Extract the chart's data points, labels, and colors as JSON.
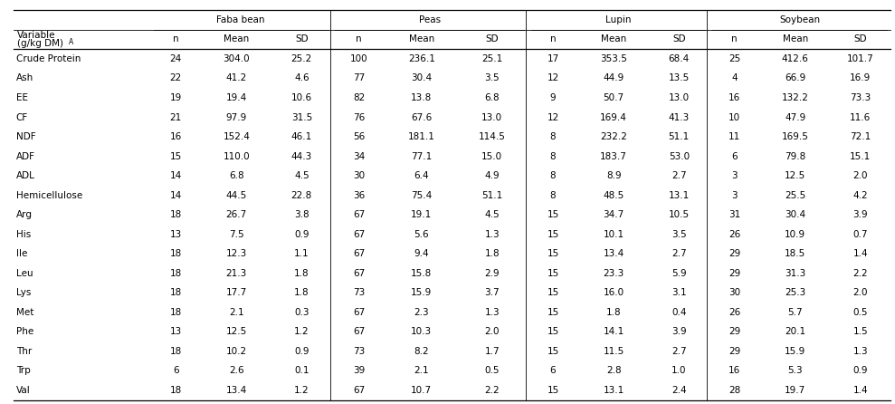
{
  "rows": [
    [
      "Crude Protein",
      "24",
      "304.0",
      "25.2",
      "100",
      "236.1",
      "25.1",
      "17",
      "353.5",
      "68.4",
      "25",
      "412.6",
      "101.7"
    ],
    [
      "Ash",
      "22",
      "41.2",
      "4.6",
      "77",
      "30.4",
      "3.5",
      "12",
      "44.9",
      "13.5",
      "4",
      "66.9",
      "16.9"
    ],
    [
      "EE",
      "19",
      "19.4",
      "10.6",
      "82",
      "13.8",
      "6.8",
      "9",
      "50.7",
      "13.0",
      "16",
      "132.2",
      "73.3"
    ],
    [
      "CF",
      "21",
      "97.9",
      "31.5",
      "76",
      "67.6",
      "13.0",
      "12",
      "169.4",
      "41.3",
      "10",
      "47.9",
      "11.6"
    ],
    [
      "NDF",
      "16",
      "152.4",
      "46.1",
      "56",
      "181.1",
      "114.5",
      "8",
      "232.2",
      "51.1",
      "11",
      "169.5",
      "72.1"
    ],
    [
      "ADF",
      "15",
      "110.0",
      "44.3",
      "34",
      "77.1",
      "15.0",
      "8",
      "183.7",
      "53.0",
      "6",
      "79.8",
      "15.1"
    ],
    [
      "ADL",
      "14",
      "6.8",
      "4.5",
      "30",
      "6.4",
      "4.9",
      "8",
      "8.9",
      "2.7",
      "3",
      "12.5",
      "2.0"
    ],
    [
      "Hemicellulose",
      "14",
      "44.5",
      "22.8",
      "36",
      "75.4",
      "51.1",
      "8",
      "48.5",
      "13.1",
      "3",
      "25.5",
      "4.2"
    ],
    [
      "Arg",
      "18",
      "26.7",
      "3.8",
      "67",
      "19.1",
      "4.5",
      "15",
      "34.7",
      "10.5",
      "31",
      "30.4",
      "3.9"
    ],
    [
      "His",
      "13",
      "7.5",
      "0.9",
      "67",
      "5.6",
      "1.3",
      "15",
      "10.1",
      "3.5",
      "26",
      "10.9",
      "0.7"
    ],
    [
      "Ile",
      "18",
      "12.3",
      "1.1",
      "67",
      "9.4",
      "1.8",
      "15",
      "13.4",
      "2.7",
      "29",
      "18.5",
      "1.4"
    ],
    [
      "Leu",
      "18",
      "21.3",
      "1.8",
      "67",
      "15.8",
      "2.9",
      "15",
      "23.3",
      "5.9",
      "29",
      "31.3",
      "2.2"
    ],
    [
      "Lys",
      "18",
      "17.7",
      "1.8",
      "73",
      "15.9",
      "3.7",
      "15",
      "16.0",
      "3.1",
      "30",
      "25.3",
      "2.0"
    ],
    [
      "Met",
      "18",
      "2.1",
      "0.3",
      "67",
      "2.3",
      "1.3",
      "15",
      "1.8",
      "0.4",
      "26",
      "5.7",
      "0.5"
    ],
    [
      "Phe",
      "13",
      "12.5",
      "1.2",
      "67",
      "10.3",
      "2.0",
      "15",
      "14.1",
      "3.9",
      "29",
      "20.1",
      "1.5"
    ],
    [
      "Thr",
      "18",
      "10.2",
      "0.9",
      "73",
      "8.2",
      "1.7",
      "15",
      "11.5",
      "2.7",
      "29",
      "15.9",
      "1.3"
    ],
    [
      "Trp",
      "6",
      "2.6",
      "0.1",
      "39",
      "2.1",
      "0.5",
      "6",
      "2.8",
      "1.0",
      "16",
      "5.3",
      "0.9"
    ],
    [
      "Val",
      "18",
      "13.4",
      "1.2",
      "67",
      "10.7",
      "2.2",
      "15",
      "13.1",
      "2.4",
      "28",
      "19.7",
      "1.4"
    ]
  ],
  "group_labels": [
    "Faba bean",
    "Peas",
    "Lupin",
    "Soybean"
  ],
  "sub_headers": [
    "n",
    "Mean",
    "SD",
    "n",
    "Mean",
    "SD",
    "n",
    "Mean",
    "SD",
    "n",
    "Mean",
    "SD"
  ],
  "var_label_line1": "Variable",
  "var_label_line2": "(g/kg DM)",
  "var_superscript": "A",
  "bg_color": "#ffffff",
  "text_color": "#000000",
  "line_color": "#000000",
  "font_size": 7.5,
  "col_widths_rel": [
    1.55,
    0.58,
    0.8,
    0.68,
    0.62,
    0.8,
    0.8,
    0.58,
    0.8,
    0.68,
    0.58,
    0.8,
    0.68
  ]
}
